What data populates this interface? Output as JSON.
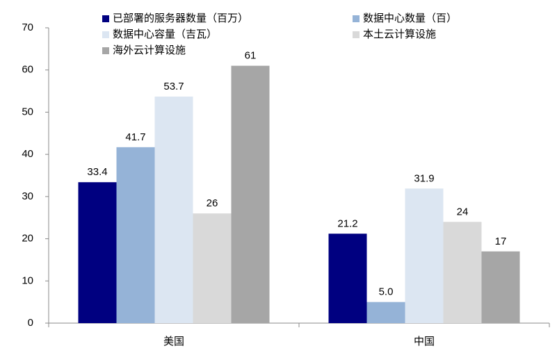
{
  "chart_data": {
    "type": "bar",
    "categories": [
      "美国",
      "中国"
    ],
    "series": [
      {
        "name": "已部署的服务器数量（百万）",
        "color": "#000080",
        "values": [
          33.4,
          21.2
        ]
      },
      {
        "name": "数据中心数量（百）",
        "color": "#95b3d7",
        "values": [
          41.7,
          5
        ],
        "value_labels": [
          "41.7",
          "5.0"
        ]
      },
      {
        "name": "数据中心容量（吉瓦）",
        "color": "#dce6f2",
        "values": [
          53.7,
          31.9
        ]
      },
      {
        "name": "本土云计算设施",
        "color": "#d9d9d9",
        "values": [
          26,
          24
        ]
      },
      {
        "name": "海外云计算设施",
        "color": "#a6a6a6",
        "values": [
          61,
          17
        ]
      }
    ],
    "ylim": [
      0,
      70
    ],
    "yticks": [
      0,
      10,
      20,
      30,
      40,
      50,
      60,
      70
    ],
    "grid": false,
    "legend": "top"
  }
}
